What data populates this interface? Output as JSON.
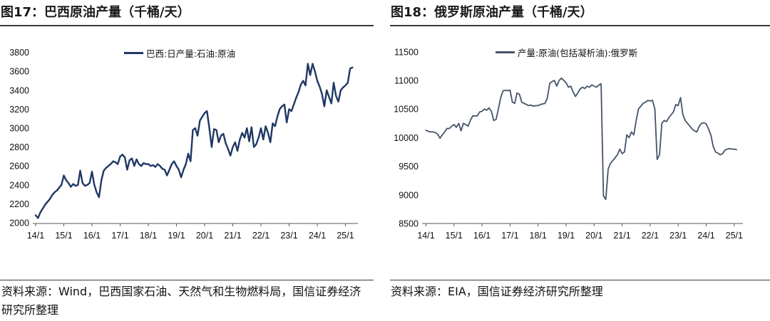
{
  "chart_data": [
    {
      "type": "line",
      "title": "图17：巴西原油产量（千桶/天）",
      "source": "资料来源：Wind，巴西国家石油、天然气和生物燃料局，国信证券经济研究所整理",
      "grid": false,
      "legend": "top-center",
      "ylim": [
        2000,
        3800
      ],
      "y_ticks": [
        2000,
        2200,
        2400,
        2600,
        2800,
        3000,
        3200,
        3400,
        3600,
        3800
      ],
      "x_ticks": [
        "14/1",
        "15/1",
        "16/1",
        "17/1",
        "18/1",
        "19/1",
        "20/1",
        "21/1",
        "22/1",
        "23/1",
        "24/1",
        "25/1"
      ],
      "x": [
        "14/1",
        "14/2",
        "14/3",
        "14/4",
        "14/5",
        "14/6",
        "14/7",
        "14/8",
        "14/9",
        "14/10",
        "14/11",
        "14/12",
        "15/1",
        "15/2",
        "15/3",
        "15/4",
        "15/5",
        "15/6",
        "15/7",
        "15/8",
        "15/9",
        "15/10",
        "15/11",
        "15/12",
        "16/1",
        "16/2",
        "16/3",
        "16/4",
        "16/5",
        "16/6",
        "16/7",
        "16/8",
        "16/9",
        "16/10",
        "16/11",
        "16/12",
        "17/1",
        "17/2",
        "17/3",
        "17/4",
        "17/5",
        "17/6",
        "17/7",
        "17/8",
        "17/9",
        "17/10",
        "17/11",
        "17/12",
        "18/1",
        "18/2",
        "18/3",
        "18/4",
        "18/5",
        "18/6",
        "18/7",
        "18/8",
        "18/9",
        "18/10",
        "18/11",
        "18/12",
        "19/1",
        "19/2",
        "19/3",
        "19/4",
        "19/5",
        "19/6",
        "19/7",
        "19/8",
        "19/9",
        "19/10",
        "19/11",
        "19/12",
        "20/1",
        "20/2",
        "20/3",
        "20/4",
        "20/5",
        "20/6",
        "20/7",
        "20/8",
        "20/9",
        "20/10",
        "20/11",
        "20/12",
        "21/1",
        "21/2",
        "21/3",
        "21/4",
        "21/5",
        "21/6",
        "21/7",
        "21/8",
        "21/9",
        "21/10",
        "21/11",
        "21/12",
        "22/1",
        "22/2",
        "22/3",
        "22/4",
        "22/5",
        "22/6",
        "22/7",
        "22/8",
        "22/9",
        "22/10",
        "22/11",
        "22/12",
        "23/1",
        "23/2",
        "23/3",
        "23/4",
        "23/5",
        "23/6",
        "23/7",
        "23/8",
        "23/9",
        "23/10",
        "23/11",
        "23/12",
        "24/1",
        "24/2",
        "24/3",
        "24/4",
        "24/5",
        "24/6",
        "24/7",
        "24/8",
        "24/9",
        "24/10",
        "24/11",
        "24/12",
        "25/1",
        "25/2",
        "25/3",
        "25/4"
      ],
      "series": [
        {
          "name": "巴西:日产量:石油:原油",
          "color": "#1F3864",
          "values": [
            2080,
            2050,
            2110,
            2150,
            2190,
            2220,
            2250,
            2290,
            2320,
            2340,
            2370,
            2400,
            2500,
            2450,
            2420,
            2380,
            2410,
            2390,
            2400,
            2550,
            2420,
            2390,
            2400,
            2420,
            2540,
            2400,
            2320,
            2270,
            2450,
            2550,
            2580,
            2600,
            2620,
            2650,
            2640,
            2620,
            2700,
            2720,
            2690,
            2560,
            2660,
            2680,
            2600,
            2670,
            2620,
            2600,
            2630,
            2620,
            2620,
            2600,
            2610,
            2590,
            2620,
            2600,
            2570,
            2560,
            2500,
            2560,
            2620,
            2650,
            2600,
            2560,
            2480,
            2560,
            2620,
            2730,
            2650,
            2980,
            3000,
            2920,
            3080,
            3120,
            3160,
            3180,
            3000,
            2800,
            2990,
            2980,
            2850,
            2920,
            2940,
            2840,
            2780,
            2710,
            2800,
            2850,
            2760,
            2880,
            2950,
            2900,
            3000,
            2860,
            3010,
            2800,
            2830,
            2900,
            3000,
            2880,
            3020,
            2950,
            2850,
            3050,
            3020,
            3120,
            3200,
            3230,
            3250,
            3060,
            3200,
            3180,
            3250,
            3320,
            3380,
            3460,
            3500,
            3450,
            3680,
            3560,
            3680,
            3600,
            3500,
            3440,
            3360,
            3230,
            3400,
            3330,
            3260,
            3480,
            3340,
            3280,
            3400,
            3430,
            3450,
            3480,
            3630,
            3640
          ]
        }
      ]
    },
    {
      "type": "line",
      "title": "图18：俄罗斯原油产量（千桶/天）",
      "source": "资料来源：EIA，国信证券经济研究所整理",
      "grid": false,
      "legend": "top-center",
      "ylim": [
        8500,
        11500
      ],
      "y_ticks": [
        8500,
        9000,
        9500,
        10000,
        10500,
        11000,
        11500
      ],
      "x_ticks": [
        "14/1",
        "15/1",
        "16/1",
        "17/1",
        "18/1",
        "19/1",
        "20/1",
        "21/1",
        "22/1",
        "23/1",
        "24/1",
        "25/1"
      ],
      "x": [
        "14/1",
        "14/2",
        "14/3",
        "14/4",
        "14/5",
        "14/6",
        "14/7",
        "14/8",
        "14/9",
        "14/10",
        "14/11",
        "14/12",
        "15/1",
        "15/2",
        "15/3",
        "15/4",
        "15/5",
        "15/6",
        "15/7",
        "15/8",
        "15/9",
        "15/10",
        "15/11",
        "15/12",
        "16/1",
        "16/2",
        "16/3",
        "16/4",
        "16/5",
        "16/6",
        "16/7",
        "16/8",
        "16/9",
        "16/10",
        "16/11",
        "16/12",
        "17/1",
        "17/2",
        "17/3",
        "17/4",
        "17/5",
        "17/6",
        "17/7",
        "17/8",
        "17/9",
        "17/10",
        "17/11",
        "17/12",
        "18/1",
        "18/2",
        "18/3",
        "18/4",
        "18/5",
        "18/6",
        "18/7",
        "18/8",
        "18/9",
        "18/10",
        "18/11",
        "18/12",
        "19/1",
        "19/2",
        "19/3",
        "19/4",
        "19/5",
        "19/6",
        "19/7",
        "19/8",
        "19/9",
        "19/10",
        "19/11",
        "19/12",
        "20/1",
        "20/2",
        "20/3",
        "20/4",
        "20/5",
        "20/6",
        "20/7",
        "20/8",
        "20/9",
        "20/10",
        "20/11",
        "20/12",
        "21/1",
        "21/2",
        "21/3",
        "21/4",
        "21/5",
        "21/6",
        "21/7",
        "21/8",
        "21/9",
        "21/10",
        "21/11",
        "21/12",
        "22/1",
        "22/2",
        "22/3",
        "22/4",
        "22/5",
        "22/6",
        "22/7",
        "22/8",
        "22/9",
        "22/10",
        "22/11",
        "22/12",
        "23/1",
        "23/2",
        "23/3",
        "23/4",
        "23/5",
        "23/6",
        "23/7",
        "23/8",
        "23/9",
        "23/10",
        "23/11",
        "23/12",
        "24/1",
        "24/2",
        "24/3",
        "24/4",
        "24/5",
        "24/6",
        "24/7",
        "24/8",
        "24/9",
        "24/10",
        "24/11",
        "24/12",
        "25/1",
        "25/2"
      ],
      "series": [
        {
          "name": "产量:原油(包括凝析油):俄罗斯",
          "color": "#44546A",
          "values": [
            10130,
            10110,
            10100,
            10100,
            10090,
            10060,
            9990,
            10050,
            10100,
            10160,
            10160,
            10200,
            10230,
            10180,
            10250,
            10120,
            10250,
            10230,
            10200,
            10300,
            10380,
            10380,
            10380,
            10450,
            10460,
            10500,
            10480,
            10520,
            10460,
            10300,
            10320,
            10500,
            10700,
            10820,
            10830,
            10820,
            10830,
            10620,
            10600,
            10780,
            10760,
            10620,
            10600,
            10580,
            10560,
            10570,
            10550,
            10560,
            10560,
            10580,
            10590,
            10600,
            10700,
            10950,
            10980,
            11000,
            10900,
            11000,
            11040,
            11000,
            10960,
            10880,
            10900,
            10800,
            10720,
            10780,
            10850,
            10880,
            10860,
            10900,
            10880,
            10920,
            10900,
            10880,
            10920,
            10940,
            8980,
            8920,
            9450,
            9550,
            9600,
            9650,
            9700,
            9800,
            9720,
            9750,
            10050,
            10000,
            10100,
            10050,
            10300,
            10500,
            10550,
            10600,
            10620,
            10650,
            10640,
            10650,
            10500,
            9620,
            9700,
            10250,
            10300,
            10280,
            10350,
            10400,
            10450,
            10580,
            10560,
            10700,
            10400,
            10300,
            10250,
            10200,
            10150,
            10120,
            10100,
            10200,
            10250,
            10260,
            10240,
            10150,
            10050,
            9850,
            9750,
            9730,
            9700,
            9720,
            9780,
            9800,
            9810,
            9800,
            9800,
            9790
          ]
        }
      ]
    }
  ]
}
